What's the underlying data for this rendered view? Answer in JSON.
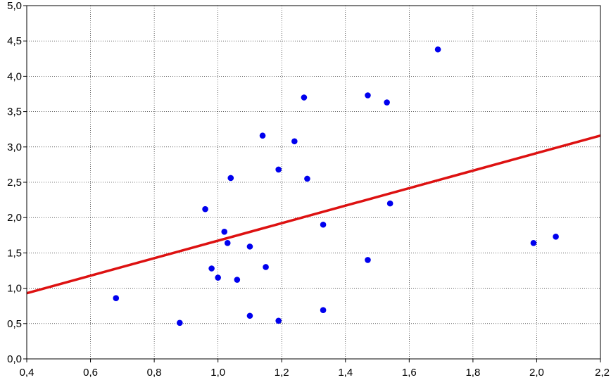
{
  "chart_data": {
    "type": "scatter",
    "title": "",
    "xlabel": "",
    "ylabel": "",
    "xlim": [
      0.4,
      2.2
    ],
    "ylim": [
      0.0,
      5.0
    ],
    "x_ticks": [
      0.4,
      0.6,
      0.8,
      1.0,
      1.2,
      1.4,
      1.6,
      1.8,
      2.0,
      2.2
    ],
    "y_ticks": [
      0.0,
      0.5,
      1.0,
      1.5,
      2.0,
      2.5,
      3.0,
      3.5,
      4.0,
      4.5,
      5.0
    ],
    "x_tick_labels": [
      "0,4",
      "0,6",
      "0,8",
      "1,0",
      "1,2",
      "1,4",
      "1,6",
      "1,8",
      "2,0",
      "2,2"
    ],
    "y_tick_labels": [
      "0,0",
      "0,5",
      "1,0",
      "1,5",
      "2,0",
      "2,5",
      "3,0",
      "3,5",
      "4,0",
      "4,5",
      "5,0"
    ],
    "grid": "dotted",
    "points": [
      {
        "x": 0.68,
        "y": 0.86
      },
      {
        "x": 0.88,
        "y": 0.51
      },
      {
        "x": 0.96,
        "y": 2.12
      },
      {
        "x": 0.98,
        "y": 1.28
      },
      {
        "x": 1.0,
        "y": 1.15
      },
      {
        "x": 1.02,
        "y": 1.8
      },
      {
        "x": 1.03,
        "y": 1.64
      },
      {
        "x": 1.04,
        "y": 2.56
      },
      {
        "x": 1.06,
        "y": 1.12
      },
      {
        "x": 1.1,
        "y": 1.59
      },
      {
        "x": 1.1,
        "y": 0.61
      },
      {
        "x": 1.14,
        "y": 3.16
      },
      {
        "x": 1.15,
        "y": 1.3
      },
      {
        "x": 1.19,
        "y": 2.68
      },
      {
        "x": 1.19,
        "y": 0.54
      },
      {
        "x": 1.24,
        "y": 3.08
      },
      {
        "x": 1.27,
        "y": 3.7
      },
      {
        "x": 1.28,
        "y": 2.55
      },
      {
        "x": 1.33,
        "y": 1.9
      },
      {
        "x": 1.33,
        "y": 0.69
      },
      {
        "x": 1.47,
        "y": 3.73
      },
      {
        "x": 1.47,
        "y": 1.4
      },
      {
        "x": 1.53,
        "y": 3.63
      },
      {
        "x": 1.54,
        "y": 2.2
      },
      {
        "x": 1.69,
        "y": 4.38
      },
      {
        "x": 1.99,
        "y": 1.64
      },
      {
        "x": 2.06,
        "y": 1.73
      }
    ],
    "trend_line": {
      "x": [
        0.4,
        2.2
      ],
      "y": [
        0.93,
        3.16
      ]
    },
    "point_color": "#0000ee",
    "line_color": "#dd1111"
  }
}
